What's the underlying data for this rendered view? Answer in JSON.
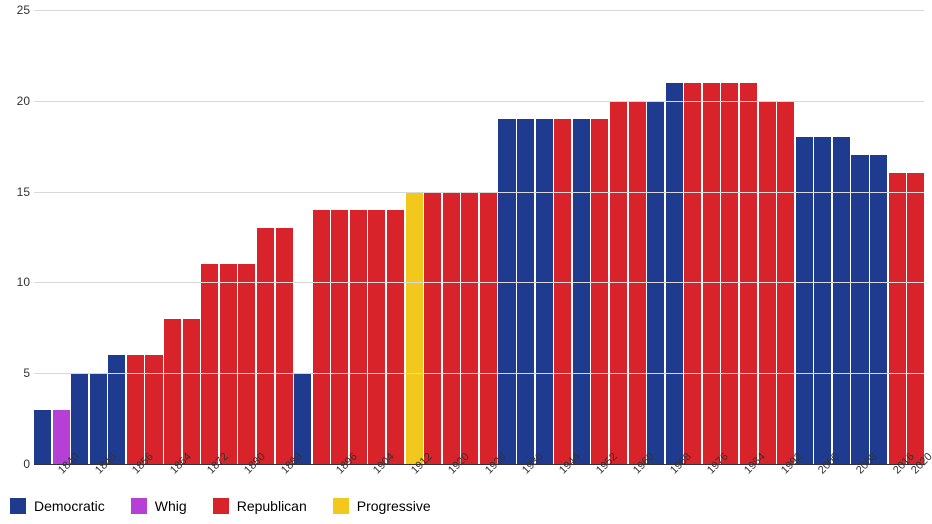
{
  "chart": {
    "type": "bar",
    "ylim": [
      0,
      25
    ],
    "ytick_step": 5,
    "background_color": "#ffffff",
    "grid_color": "#d9d9d9",
    "axis_baseline_color": "#333333",
    "label_fontsize": 12,
    "tick_fontsize": 11,
    "label_color": "#333333",
    "x_tick_step": 8,
    "parties": {
      "Democratic": {
        "color": "#1f3b8f"
      },
      "Whig": {
        "color": "#b63fd6"
      },
      "Republican": {
        "color": "#d8232a"
      },
      "Progressive": {
        "color": "#f2c81c"
      }
    },
    "series": [
      {
        "year": 1836,
        "value": 3,
        "party": "Democratic"
      },
      {
        "year": 1840,
        "value": 3,
        "party": "Whig"
      },
      {
        "year": 1844,
        "value": 5,
        "party": "Democratic"
      },
      {
        "year": 1848,
        "value": 5,
        "party": "Democratic"
      },
      {
        "year": 1852,
        "value": 6,
        "party": "Democratic"
      },
      {
        "year": 1856,
        "value": 6,
        "party": "Republican"
      },
      {
        "year": 1860,
        "value": 6,
        "party": "Republican"
      },
      {
        "year": 1864,
        "value": 8,
        "party": "Republican"
      },
      {
        "year": 1868,
        "value": 8,
        "party": "Republican"
      },
      {
        "year": 1872,
        "value": 11,
        "party": "Republican"
      },
      {
        "year": 1876,
        "value": 11,
        "party": "Republican"
      },
      {
        "year": 1880,
        "value": 11,
        "party": "Republican"
      },
      {
        "year": 1884,
        "value": 13,
        "party": "Republican"
      },
      {
        "year": 1888,
        "value": 13,
        "party": "Republican"
      },
      {
        "year": 1892,
        "value": 5,
        "party": "Democratic"
      },
      {
        "year": 1892,
        "value": 14,
        "party": "Republican"
      },
      {
        "year": 1896,
        "value": 14,
        "party": "Republican"
      },
      {
        "year": 1900,
        "value": 14,
        "party": "Republican"
      },
      {
        "year": 1904,
        "value": 14,
        "party": "Republican"
      },
      {
        "year": 1908,
        "value": 14,
        "party": "Republican"
      },
      {
        "year": 1912,
        "value": 15,
        "party": "Progressive"
      },
      {
        "year": 1916,
        "value": 15,
        "party": "Republican"
      },
      {
        "year": 1920,
        "value": 15,
        "party": "Republican"
      },
      {
        "year": 1924,
        "value": 15,
        "party": "Republican"
      },
      {
        "year": 1928,
        "value": 15,
        "party": "Republican"
      },
      {
        "year": 1932,
        "value": 19,
        "party": "Democratic"
      },
      {
        "year": 1936,
        "value": 19,
        "party": "Democratic"
      },
      {
        "year": 1940,
        "value": 19,
        "party": "Democratic"
      },
      {
        "year": 1944,
        "value": 19,
        "party": "Republican"
      },
      {
        "year": 1948,
        "value": 19,
        "party": "Democratic"
      },
      {
        "year": 1952,
        "value": 19,
        "party": "Republican"
      },
      {
        "year": 1956,
        "value": 20,
        "party": "Republican"
      },
      {
        "year": 1960,
        "value": 20,
        "party": "Republican"
      },
      {
        "year": 1964,
        "value": 20,
        "party": "Democratic"
      },
      {
        "year": 1968,
        "value": 21,
        "party": "Democratic"
      },
      {
        "year": 1972,
        "value": 21,
        "party": "Republican"
      },
      {
        "year": 1976,
        "value": 21,
        "party": "Republican"
      },
      {
        "year": 1980,
        "value": 21,
        "party": "Republican"
      },
      {
        "year": 1984,
        "value": 21,
        "party": "Republican"
      },
      {
        "year": 1988,
        "value": 20,
        "party": "Republican"
      },
      {
        "year": 1992,
        "value": 20,
        "party": "Republican"
      },
      {
        "year": 1996,
        "value": 18,
        "party": "Democratic"
      },
      {
        "year": 2000,
        "value": 18,
        "party": "Democratic"
      },
      {
        "year": 2004,
        "value": 18,
        "party": "Democratic"
      },
      {
        "year": 2008,
        "value": 17,
        "party": "Democratic"
      },
      {
        "year": 2012,
        "value": 17,
        "party": "Democratic"
      },
      {
        "year": 2016,
        "value": 16,
        "party": "Republican"
      },
      {
        "year": 2020,
        "value": 16,
        "party": "Republican"
      }
    ],
    "legend_items": [
      "Democratic",
      "Whig",
      "Republican",
      "Progressive"
    ]
  }
}
